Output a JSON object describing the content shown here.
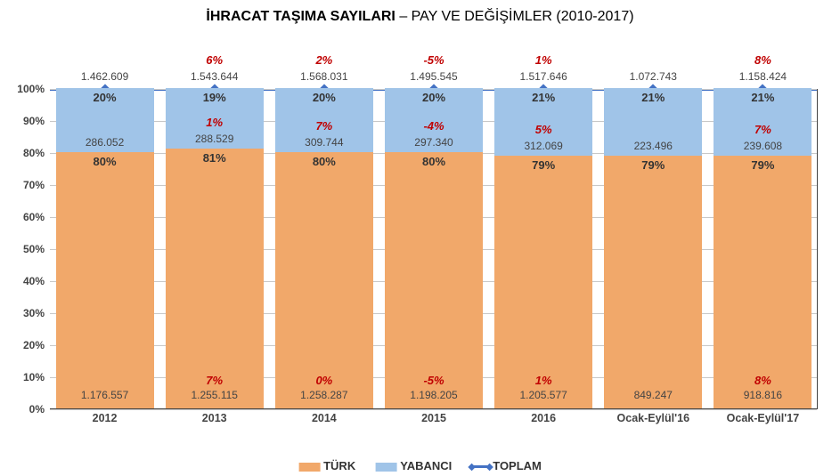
{
  "title_bold": "İHRACAT TAŞIMA SAYILARI",
  "title_rest": " – PAY VE DEĞİŞİMLER (2010-2017)",
  "ylim": [
    0,
    100
  ],
  "ytick_step": 10,
  "colors": {
    "turk": "#f1a86a",
    "yabanci": "#a0c4e8",
    "toplam_line": "#4472c4",
    "delta": "#c00000",
    "grid": "#c8c8c8",
    "bg": "#ffffff"
  },
  "legend": [
    {
      "label": "TÜRK",
      "swatch": "turk"
    },
    {
      "label": "YABANCI",
      "swatch": "yab"
    },
    {
      "label": "TOPLAM",
      "swatch": "line"
    }
  ],
  "columns": [
    {
      "x": "2012",
      "turk_pct": 80,
      "yab_pct": 20,
      "turk_val": "1.176.557",
      "yab_val": "286.052",
      "top_val": "1.462.609",
      "d_top": "",
      "d_yab": "",
      "d_turk": ""
    },
    {
      "x": "2013",
      "turk_pct": 81,
      "yab_pct": 19,
      "turk_val": "1.255.115",
      "yab_val": "288.529",
      "top_val": "1.543.644",
      "d_top": "6%",
      "d_yab": "1%",
      "d_turk": "7%"
    },
    {
      "x": "2014",
      "turk_pct": 80,
      "yab_pct": 20,
      "turk_val": "1.258.287",
      "yab_val": "309.744",
      "top_val": "1.568.031",
      "d_top": "2%",
      "d_yab": "7%",
      "d_turk": "0%"
    },
    {
      "x": "2015",
      "turk_pct": 80,
      "yab_pct": 20,
      "turk_val": "1.198.205",
      "yab_val": "297.340",
      "top_val": "1.495.545",
      "d_top": "-5%",
      "d_yab": "-4%",
      "d_turk": "-5%"
    },
    {
      "x": "2016",
      "turk_pct": 79,
      "yab_pct": 21,
      "turk_val": "1.205.577",
      "yab_val": "312.069",
      "top_val": "1.517.646",
      "d_top": "1%",
      "d_yab": "5%",
      "d_turk": "1%"
    },
    {
      "x": "Ocak-Eylül'16",
      "turk_pct": 79,
      "yab_pct": 21,
      "turk_val": "849.247",
      "yab_val": "223.496",
      "top_val": "1.072.743",
      "d_top": "",
      "d_yab": "",
      "d_turk": ""
    },
    {
      "x": "Ocak-Eylül'17",
      "turk_pct": 79,
      "yab_pct": 21,
      "turk_val": "918.816",
      "yab_val": "239.608",
      "top_val": "1.158.424",
      "d_top": "8%",
      "d_yab": "7%",
      "d_turk": "8%"
    }
  ],
  "font": {
    "title_size": 16,
    "label_size": 12,
    "axis_size": 12,
    "delta_size": 13,
    "family": "Arial"
  },
  "chart_type": "stacked-bar-100pct"
}
